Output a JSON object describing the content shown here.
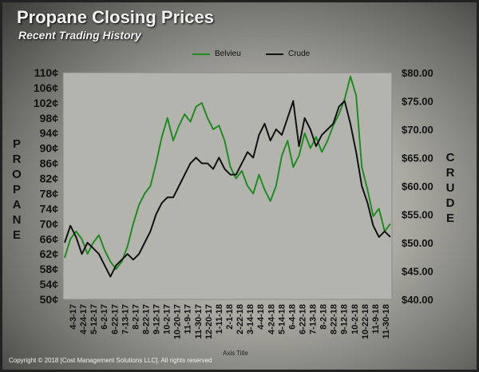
{
  "page": {
    "title": "Propane Closing Prices",
    "subtitle": "Recent Trading History",
    "copyright": "Copyright  © 2018  [Cost Management  Solutions LLC].   All rights  reserved"
  },
  "chart_data": {
    "type": "line",
    "xlabel": "Axis Title",
    "y_left_label": "PROPANE",
    "y_right_label": "CRUDE",
    "y_left_ticks": [
      "50¢",
      "54¢",
      "58¢",
      "62¢",
      "66¢",
      "70¢",
      "74¢",
      "78¢",
      "82¢",
      "86¢",
      "90¢",
      "94¢",
      "98¢",
      "102¢",
      "106¢",
      "110¢"
    ],
    "y_left_range": [
      50,
      110
    ],
    "y_right_ticks": [
      "$40.00",
      "$45.00",
      "$50.00",
      "$55.00",
      "$60.00",
      "$65.00",
      "$70.00",
      "$75.00",
      "$80.00"
    ],
    "y_right_range": [
      40,
      80
    ],
    "x_tick_labels": [
      "4-3-17",
      "4-24-17",
      "5-12-17",
      "6-2-17",
      "6-22-17",
      "7-13-17",
      "8-2-17",
      "8-22-17",
      "9-12-17",
      "10-2-17",
      "10-20-17",
      "11-9-17",
      "11-30-17",
      "12-20-17",
      "1-11-18",
      "2-1-18",
      "2-22-18",
      "3-14-18",
      "4-4-18",
      "4-24-18",
      "5-14-18",
      "6-4-18",
      "6-22-18",
      "7-13-18",
      "8-2-18",
      "8-22-18",
      "9-12-18",
      "10-2-18",
      "10-22-18",
      "11-9-18",
      "11-30-18"
    ],
    "grid": false,
    "legend": "top",
    "series": [
      {
        "name": "Belvieu",
        "color": "#1e8c1e",
        "axis": "left",
        "values": [
          61,
          66,
          68,
          66,
          62,
          65,
          67,
          63,
          60,
          58,
          60,
          64,
          70,
          75,
          78,
          80,
          86,
          93,
          98,
          92,
          96,
          99,
          97,
          101,
          102,
          98,
          95,
          96,
          92,
          85,
          82,
          84,
          80,
          78,
          83,
          79,
          76,
          80,
          88,
          92,
          85,
          88,
          94,
          90,
          93,
          89,
          92,
          96,
          99,
          103,
          109,
          104,
          85,
          79,
          72,
          74,
          68,
          70
        ]
      },
      {
        "name": "Crude",
        "color": "#111111",
        "axis": "right",
        "values": [
          50,
          53,
          51,
          48,
          50,
          49,
          48,
          46,
          44,
          46,
          47,
          48,
          47,
          48,
          50,
          52,
          55,
          57,
          58,
          58,
          60,
          62,
          64,
          65,
          64,
          64,
          63,
          65,
          63,
          62,
          62,
          64,
          66,
          65,
          69,
          71,
          68,
          70,
          69,
          72,
          75,
          67,
          72,
          70,
          67,
          69,
          70,
          71,
          74,
          75,
          71,
          66,
          60,
          57,
          53,
          51,
          52,
          51
        ]
      }
    ]
  }
}
